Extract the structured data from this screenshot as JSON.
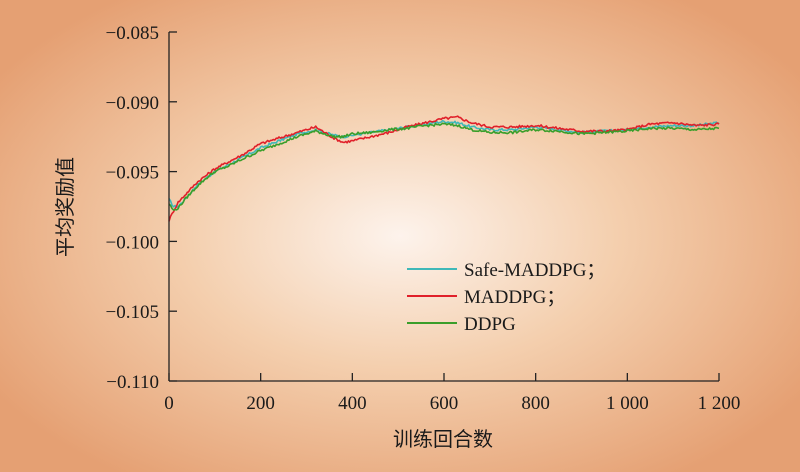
{
  "chart_data": {
    "type": "line",
    "title": "",
    "xlabel": "训练回合数",
    "ylabel": "平均奖励值",
    "xlim": [
      0,
      1200
    ],
    "ylim": [
      -0.11,
      -0.085
    ],
    "x_ticks": [
      0,
      200,
      400,
      600,
      800,
      1000,
      1200
    ],
    "x_tick_labels": [
      "0",
      "200",
      "400",
      "600",
      "800",
      "1 000",
      "1 200"
    ],
    "y_ticks": [
      -0.085,
      -0.09,
      -0.095,
      -0.1,
      -0.105,
      -0.11
    ],
    "y_tick_labels": [
      "−0.085",
      "−0.090",
      "−0.095",
      "−0.100",
      "−0.105",
      "−0.110"
    ],
    "grid": false,
    "legend_position": "lower-right",
    "series": [
      {
        "name": "Safe-MADDPG；",
        "color": "#3fb8b8",
        "x": [
          0,
          10,
          20,
          40,
          60,
          80,
          100,
          130,
          160,
          200,
          240,
          280,
          320,
          340,
          360,
          380,
          400,
          440,
          480,
          520,
          560,
          600,
          630,
          660,
          700,
          750,
          800,
          850,
          900,
          950,
          1000,
          1050,
          1100,
          1150,
          1200
        ],
        "y": [
          -0.097,
          -0.0975,
          -0.0975,
          -0.0968,
          -0.096,
          -0.0955,
          -0.095,
          -0.0945,
          -0.094,
          -0.0933,
          -0.0928,
          -0.0923,
          -0.092,
          -0.0922,
          -0.0924,
          -0.0925,
          -0.0924,
          -0.0922,
          -0.092,
          -0.0918,
          -0.0916,
          -0.0914,
          -0.0915,
          -0.0918,
          -0.092,
          -0.092,
          -0.0918,
          -0.092,
          -0.0922,
          -0.0921,
          -0.092,
          -0.0918,
          -0.0917,
          -0.0917,
          -0.0915
        ]
      },
      {
        "name": "MADDPG；",
        "color": "#e0202a",
        "x": [
          0,
          10,
          20,
          40,
          60,
          80,
          100,
          130,
          160,
          200,
          240,
          280,
          320,
          340,
          360,
          380,
          400,
          440,
          480,
          520,
          560,
          600,
          630,
          660,
          700,
          750,
          800,
          850,
          900,
          950,
          1000,
          1050,
          1100,
          1150,
          1200
        ],
        "y": [
          -0.0985,
          -0.0978,
          -0.0972,
          -0.0965,
          -0.0958,
          -0.0953,
          -0.0948,
          -0.0943,
          -0.0938,
          -0.093,
          -0.0926,
          -0.0922,
          -0.0918,
          -0.0922,
          -0.0926,
          -0.0929,
          -0.0928,
          -0.0925,
          -0.0922,
          -0.0918,
          -0.0915,
          -0.0912,
          -0.0911,
          -0.0915,
          -0.0918,
          -0.0918,
          -0.0917,
          -0.0919,
          -0.0921,
          -0.0921,
          -0.092,
          -0.0916,
          -0.0915,
          -0.0917,
          -0.0916
        ]
      },
      {
        "name": "DDPG",
        "color": "#3a9e2a",
        "x": [
          0,
          10,
          20,
          40,
          60,
          80,
          100,
          130,
          160,
          200,
          240,
          280,
          320,
          340,
          360,
          380,
          400,
          440,
          480,
          520,
          560,
          600,
          630,
          660,
          700,
          750,
          800,
          850,
          900,
          950,
          1000,
          1050,
          1100,
          1150,
          1200
        ],
        "y": [
          -0.0973,
          -0.0978,
          -0.0976,
          -0.0968,
          -0.0961,
          -0.0955,
          -0.095,
          -0.0946,
          -0.0941,
          -0.0935,
          -0.093,
          -0.0925,
          -0.0921,
          -0.0923,
          -0.0925,
          -0.0925,
          -0.0923,
          -0.0922,
          -0.092,
          -0.0919,
          -0.0917,
          -0.0916,
          -0.0917,
          -0.092,
          -0.0922,
          -0.0922,
          -0.092,
          -0.0921,
          -0.0923,
          -0.0922,
          -0.0921,
          -0.0919,
          -0.0919,
          -0.092,
          -0.0919
        ]
      }
    ]
  }
}
